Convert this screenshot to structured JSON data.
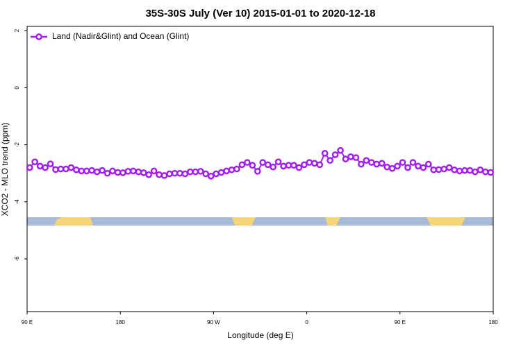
{
  "chart_data": {
    "type": "line",
    "title": "35S-30S July (Ver 10)   2015-01-01 to 2020-12-18",
    "x_label": "Longitude (deg E)",
    "y_label": "XCO2 - MLO trend (ppm)",
    "xlim": [
      90,
      540
    ],
    "ylim": [
      -7.85,
      2.15
    ],
    "xticks": [
      {
        "value": 90,
        "label": "90 E"
      },
      180,
      {
        "value": 270,
        "label": "90 W"
      },
      {
        "value": 360,
        "label": "0"
      },
      {
        "value": 450,
        "label": "90 E"
      },
      {
        "value": 540,
        "label": "180"
      }
    ],
    "yticks": [
      2,
      0,
      -2,
      -4,
      -6
    ],
    "legend": "top-left",
    "x": [
      92.5,
      97.5,
      102.5,
      107.5,
      112.5,
      117.5,
      122.5,
      127.5,
      132.5,
      137.5,
      142.5,
      147.5,
      152.5,
      157.5,
      162.5,
      167.5,
      172.5,
      177.5,
      182.5,
      187.5,
      192.5,
      197.5,
      202.5,
      207.5,
      212.5,
      217.5,
      222.5,
      227.5,
      232.5,
      237.5,
      242.5,
      247.5,
      252.5,
      257.5,
      262.5,
      267.5,
      272.5,
      277.5,
      282.5,
      287.5,
      292.5,
      297.5,
      302.5,
      307.5,
      312.5,
      317.5,
      322.5,
      327.5,
      332.5,
      337.5,
      342.5,
      347.5,
      352.5,
      357.5,
      362.5,
      367.5,
      372.5,
      377.5,
      382.5,
      387.5,
      392.5,
      397.5,
      402.5,
      407.5,
      412.5,
      417.5,
      422.5,
      427.5,
      432.5,
      437.5,
      442.5,
      447.5,
      452.5,
      457.5,
      462.5,
      467.5,
      472.5,
      477.5,
      482.5,
      487.5,
      492.5,
      497.5,
      502.5,
      507.5,
      512.5,
      517.5,
      522.5,
      527.5,
      532.5,
      537.5
    ],
    "series": [
      {
        "name": "Land (Nadir&Glint) and Ocean (Glint)",
        "color": "#a020f0",
        "values": [
          -2.8,
          -2.6,
          -2.75,
          -2.8,
          -2.67,
          -2.87,
          -2.85,
          -2.85,
          -2.8,
          -2.88,
          -2.92,
          -2.92,
          -2.9,
          -2.95,
          -2.9,
          -3.0,
          -2.92,
          -2.97,
          -2.98,
          -2.93,
          -2.92,
          -2.95,
          -2.98,
          -3.05,
          -2.92,
          -3.05,
          -3.08,
          -3.02,
          -3.0,
          -3.0,
          -3.02,
          -2.95,
          -2.95,
          -2.93,
          -3.02,
          -3.1,
          -3.02,
          -2.97,
          -2.92,
          -2.88,
          -2.85,
          -2.7,
          -2.62,
          -2.72,
          -2.93,
          -2.62,
          -2.7,
          -2.78,
          -2.6,
          -2.75,
          -2.72,
          -2.72,
          -2.8,
          -2.7,
          -2.62,
          -2.65,
          -2.7,
          -2.3,
          -2.55,
          -2.35,
          -2.2,
          -2.5,
          -2.42,
          -2.45,
          -2.68,
          -2.55,
          -2.62,
          -2.68,
          -2.65,
          -2.78,
          -2.83,
          -2.75,
          -2.62,
          -2.8,
          -2.62,
          -2.75,
          -2.8,
          -2.68,
          -2.88,
          -2.87,
          -2.85,
          -2.8,
          -2.88,
          -2.92,
          -2.9,
          -2.9,
          -2.95,
          -2.88,
          -2.95,
          -2.97
        ]
      }
    ]
  }
}
